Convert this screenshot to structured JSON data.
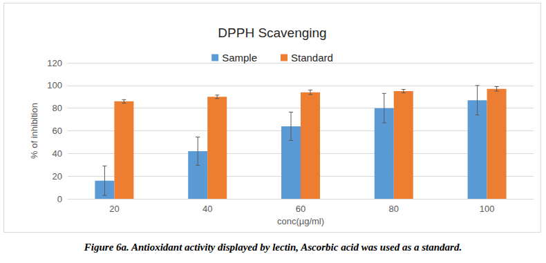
{
  "chart_data": {
    "type": "bar",
    "title": "DPPH Scavenging",
    "caption": "Figure 6a. Antioxidant activity displayed by lectin, Ascorbic acid was used as a standard.",
    "x_label": "conc(µg/ml)",
    "y_label": "% of inhibition",
    "categories": [
      "20",
      "40",
      "60",
      "80",
      "100"
    ],
    "series": [
      {
        "name": "Sample",
        "color": "#5b9bd5",
        "values": [
          16,
          42,
          64,
          80,
          87
        ],
        "errors": [
          13,
          12.5,
          12.5,
          13,
          13
        ]
      },
      {
        "name": "Standard",
        "color": "#ed7d31",
        "values": [
          86,
          90,
          94,
          95,
          97
        ],
        "errors": [
          1.5,
          1.5,
          2,
          1.5,
          2
        ]
      }
    ],
    "ylim": [
      0,
      120
    ],
    "yticks": [
      0,
      20,
      40,
      60,
      80,
      100,
      120
    ],
    "grid": true,
    "legend": "top"
  }
}
